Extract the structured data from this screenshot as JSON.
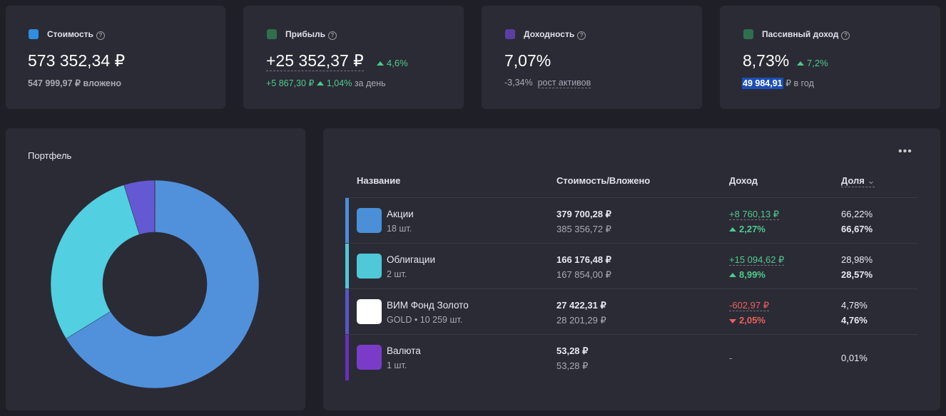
{
  "cards": [
    {
      "title": "Стоимость",
      "value": "573 352,34 ₽",
      "note": "547 999,97 ₽ вложено"
    },
    {
      "title": "Прибыль",
      "value": "+25 352,37 ₽",
      "change": "4,6%",
      "day_value": "+5 867,30 ₽",
      "day_change": "1,04%",
      "day_label": "за день"
    },
    {
      "title": "Доходность",
      "value": "7,07%",
      "sub_value": "-3,34%",
      "sub_label": "рост активов"
    },
    {
      "title": "Пассивный доход",
      "value": "8,73%",
      "change": "7,2%",
      "highlight": "49 984,91",
      "sub_label": "₽ в год"
    }
  ],
  "chart_data": {
    "type": "pie",
    "title": "Портфель",
    "values": [
      66.22,
      28.98,
      4.78,
      0.01
    ],
    "colors": [
      "#5191dc",
      "#52cfe0",
      "#6459d2",
      "#7a38c8"
    ]
  },
  "table": {
    "headers": [
      "Название",
      "Стоимость/Вложено",
      "Доход",
      "Доля"
    ],
    "rows": [
      {
        "name": "Акции",
        "sub": "18 шт.",
        "value": "379 700,28 ₽",
        "invested": "385 356,72 ₽",
        "income": "+8 760,13 ₽",
        "income_pct": "2,27%",
        "share": "66,22%",
        "share_target": "66,67%"
      },
      {
        "name": "Облигации",
        "sub": "2 шт.",
        "value": "166 176,48 ₽",
        "invested": "167 854,00 ₽",
        "income": "+15 094,62 ₽",
        "income_pct": "8,99%",
        "share": "28,98%",
        "share_target": "28,57%"
      },
      {
        "name": "ВИМ Фонд Золото",
        "sub": "GOLD • 10 259 шт.",
        "value": "27 422,31 ₽",
        "invested": "28 201,29 ₽",
        "income": "-602,97 ₽",
        "income_pct": "2,05%",
        "share": "4,78%",
        "share_target": "4,76%"
      },
      {
        "name": "Валюта",
        "sub": "1 шт.",
        "value": "53,28 ₽",
        "invested": "53,28 ₽",
        "income": "-",
        "share": "0,01%"
      }
    ]
  }
}
